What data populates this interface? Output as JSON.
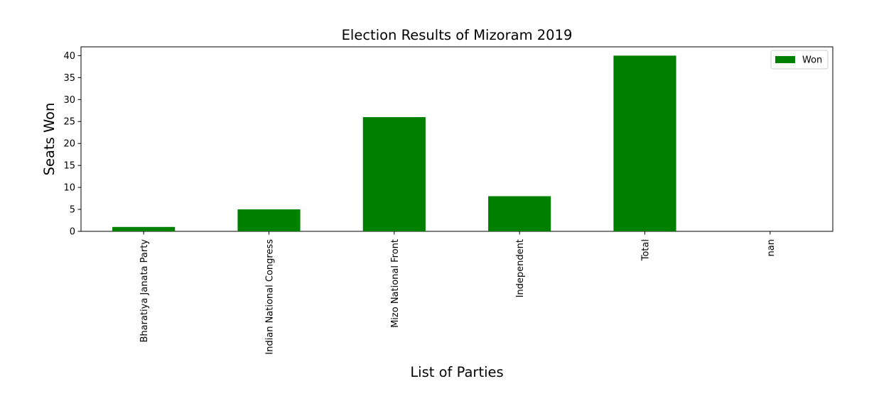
{
  "chart_data": {
    "type": "bar",
    "title": "Election Results of Mizoram  2019",
    "xlabel": "List of  Parties",
    "ylabel": "Seats Won",
    "categories": [
      "Bharatiya Janata Party",
      "Indian National Congress",
      "Mizo National Front",
      "Independent",
      "Total",
      "nan"
    ],
    "series": [
      {
        "name": "Won",
        "values": [
          1,
          5,
          26,
          8,
          40,
          null
        ],
        "color": "#008000"
      }
    ],
    "ylim": [
      0,
      42
    ],
    "yticks": [
      0,
      5,
      10,
      15,
      20,
      25,
      30,
      35,
      40
    ],
    "grid": false,
    "legend_position": "top-right"
  }
}
